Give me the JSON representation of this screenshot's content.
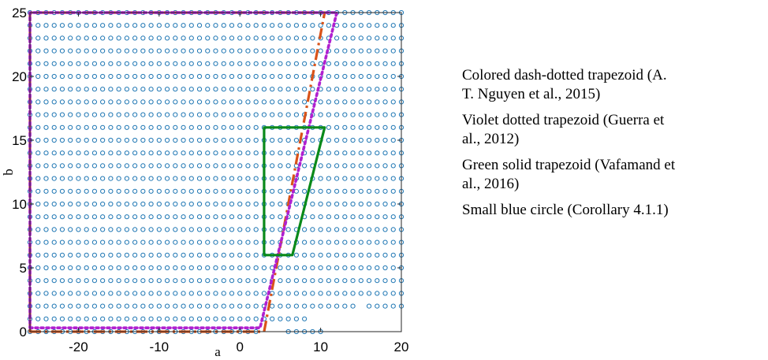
{
  "chart_data": {
    "type": "scatter",
    "xlabel": "a",
    "ylabel": "b",
    "xlim": [
      -26,
      20
    ],
    "ylim": [
      0,
      25
    ],
    "x_ticks": [
      -20,
      -10,
      0,
      10,
      20
    ],
    "y_ticks": [
      0,
      5,
      10,
      15,
      20,
      25
    ],
    "grid": false,
    "legend_position": "right",
    "series": [
      {
        "kind": "circles",
        "color": "#1f77b4",
        "x_range": [
          -26,
          20
        ],
        "step": 1,
        "y_values": [
          0,
          1,
          2,
          3,
          4,
          5,
          6,
          7,
          8,
          9,
          10,
          11,
          12,
          13,
          14,
          15,
          16,
          17,
          18,
          19,
          20,
          21,
          22,
          23,
          24,
          25
        ],
        "row_x_ranges": [
          {
            "y": 0,
            "x_ranges": [
              [
                -26,
                2
              ],
              [
                6,
                10
              ]
            ]
          },
          {
            "y": 1,
            "x_ranges": [
              [
                -26,
                8
              ]
            ]
          },
          {
            "y": 2,
            "x_ranges": [
              [
                -26,
                14
              ],
              [
                16,
                20
              ]
            ]
          }
        ]
      },
      {
        "kind": "trapezoid",
        "style": "dash-dot",
        "color": "#d95319",
        "points": [
          [
            -26,
            0
          ],
          [
            3,
            0
          ],
          [
            10.5,
            25
          ],
          [
            -26,
            25
          ]
        ]
      },
      {
        "kind": "trapezoid",
        "style": "dotted",
        "color": "#b020d0",
        "points": [
          [
            -26,
            0.3
          ],
          [
            2.5,
            0.3
          ],
          [
            12,
            25
          ],
          [
            -26,
            25
          ]
        ]
      },
      {
        "kind": "trapezoid",
        "style": "solid",
        "color": "#0a8a1a",
        "points": [
          [
            3,
            6
          ],
          [
            6.5,
            6
          ],
          [
            10.5,
            16
          ],
          [
            3,
            16
          ]
        ]
      }
    ]
  },
  "legend": {
    "entries": [
      [
        "Colored dash-dotted trapezoid (A.",
        "T. Nguyen et al., 2015)"
      ],
      [
        "Violet dotted trapezoid (Guerra et",
        "al., 2012)"
      ],
      [
        "Green solid trapezoid (Vafamand et",
        "al., 2016)"
      ],
      [
        "Small blue circle (Corollary 4.1.1)"
      ]
    ]
  }
}
